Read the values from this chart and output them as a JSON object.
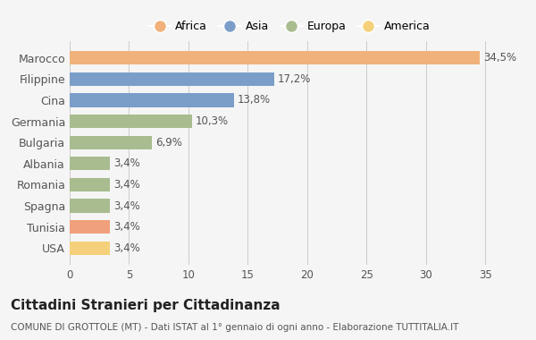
{
  "categories": [
    "Marocco",
    "Filippine",
    "Cina",
    "Germania",
    "Bulgaria",
    "Albania",
    "Romania",
    "Spagna",
    "Tunisia",
    "USA"
  ],
  "values": [
    34.5,
    17.2,
    13.8,
    10.3,
    6.9,
    3.4,
    3.4,
    3.4,
    3.4,
    3.4
  ],
  "labels": [
    "34,5%",
    "17,2%",
    "13,8%",
    "10,3%",
    "6,9%",
    "3,4%",
    "3,4%",
    "3,4%",
    "3,4%",
    "3,4%"
  ],
  "colors": [
    "#f0b27a",
    "#7b9ec9",
    "#7b9ec9",
    "#a8bc8f",
    "#a8bc8f",
    "#a8bc8f",
    "#a8bc8f",
    "#a8bc8f",
    "#f0a07a",
    "#f5d07a"
  ],
  "legend_labels": [
    "Africa",
    "Asia",
    "Europa",
    "America"
  ],
  "legend_colors": [
    "#f0b27a",
    "#7b9ec9",
    "#a8bc8f",
    "#f5d07a"
  ],
  "title": "Cittadini Stranieri per Cittadinanza",
  "subtitle": "COMUNE DI GROTTOLE (MT) - Dati ISTAT al 1° gennaio di ogni anno - Elaborazione TUTTITALIA.IT",
  "xlim": [
    0,
    37
  ],
  "xticks": [
    0,
    5,
    10,
    15,
    20,
    25,
    30,
    35
  ],
  "background_color": "#f5f5f5"
}
